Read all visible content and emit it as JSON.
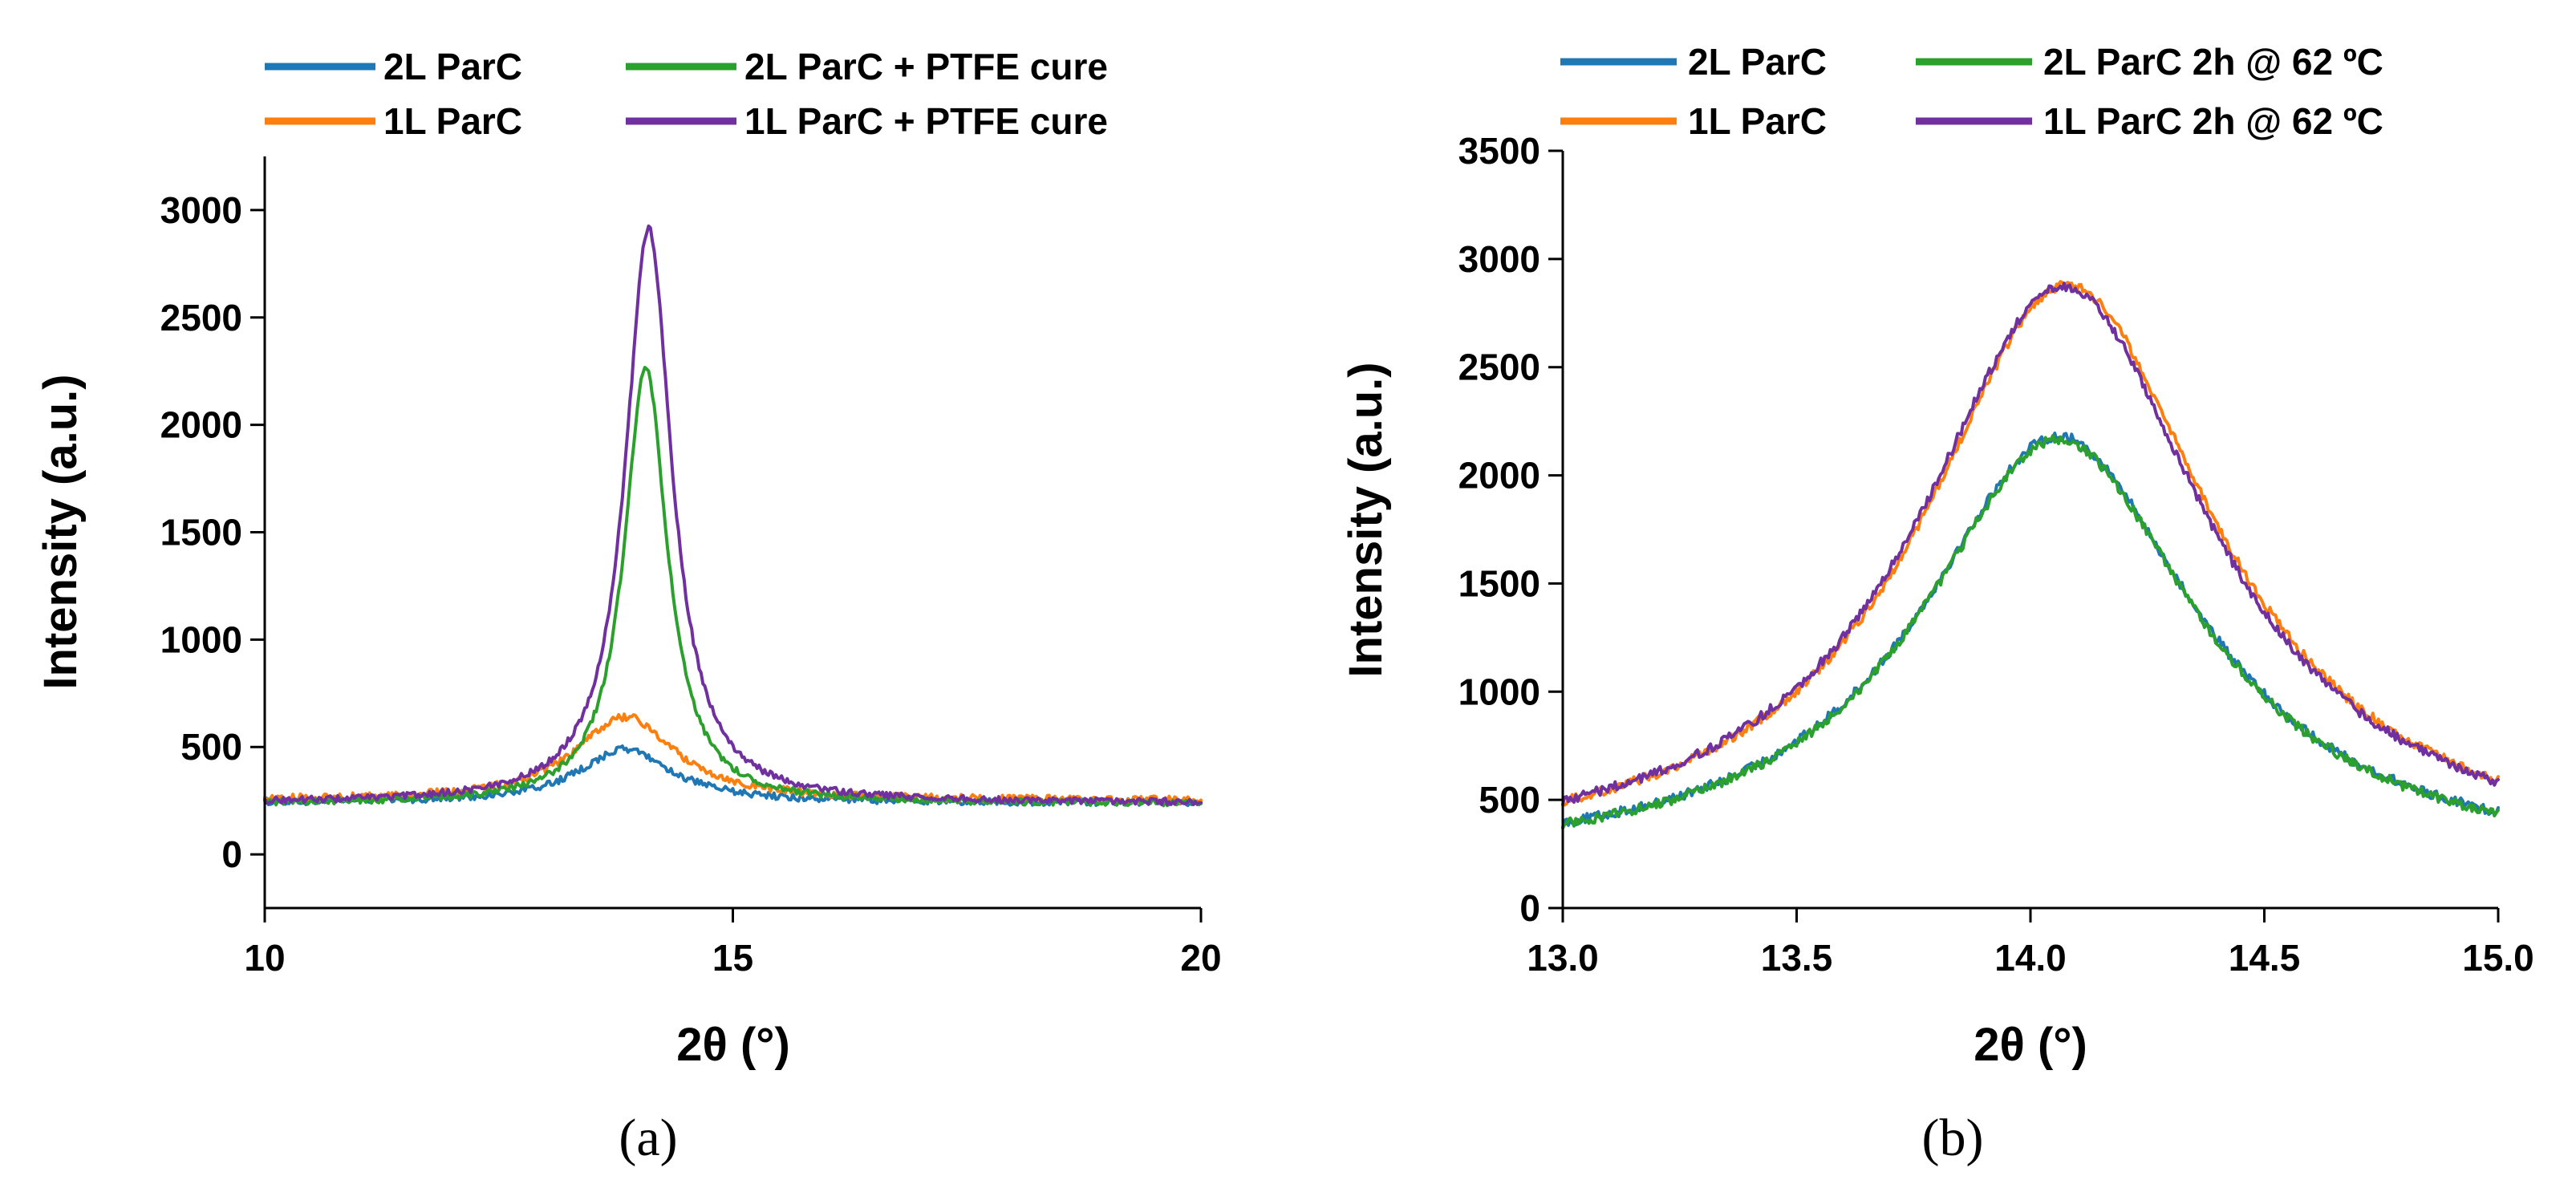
{
  "chart_data": [
    {
      "type": "line",
      "panel_label": "(a)",
      "xlabel": "2θ (°)",
      "ylabel": "Intensity (a.u.)",
      "xlim": [
        10,
        20
      ],
      "ylim": [
        -250,
        3250
      ],
      "xticks": [
        10,
        15,
        20
      ],
      "yticks": [
        0,
        500,
        1000,
        1500,
        2000,
        2500,
        3000
      ],
      "xtick_labels": [
        "10",
        "15",
        "20"
      ],
      "ytick_labels": [
        "0",
        "500",
        "1000",
        "1500",
        "2000",
        "2500",
        "3000"
      ],
      "grid": false,
      "legend_position": "top",
      "series": [
        {
          "name": "2L ParC",
          "color": "#1f77b4",
          "baseline": 240,
          "peak_center": 13.85,
          "peak_height": 250,
          "peak_width": 0.6,
          "noise": 16,
          "x_range": [
            10,
            20
          ],
          "step": 0.02
        },
        {
          "name": "1L ParC",
          "color": "#ff7f0e",
          "baseline": 250,
          "peak_center": 13.85,
          "peak_height": 390,
          "peak_width": 0.65,
          "noise": 18,
          "x_range": [
            10,
            20
          ],
          "step": 0.02
        },
        {
          "name": "2L ParC + PTFE cure",
          "color": "#2ca02c",
          "baseline": 235,
          "peak_center": 14.07,
          "peak_height": 2030,
          "peak_width": 0.28,
          "noise": 15,
          "x_range": [
            10,
            20
          ],
          "step": 0.02
        },
        {
          "name": "1L ParC + PTFE cure",
          "color": "#7030a0",
          "baseline": 238,
          "peak_center": 14.1,
          "peak_height": 2680,
          "peak_width": 0.3,
          "noise": 15,
          "x_range": [
            10,
            20
          ],
          "step": 0.02
        }
      ]
    },
    {
      "type": "line",
      "panel_label": "(b)",
      "xlabel": "2θ (°)",
      "ylabel": "Intensity (a.u.)",
      "xlim": [
        13.0,
        15.0
      ],
      "ylim": [
        0,
        3500
      ],
      "xticks": [
        13.0,
        13.5,
        14.0,
        14.5,
        15.0
      ],
      "yticks": [
        0,
        500,
        1000,
        1500,
        2000,
        2500,
        3000,
        3500
      ],
      "xtick_labels": [
        "13.0",
        "13.5",
        "14.0",
        "14.5",
        "15.0"
      ],
      "ytick_labels": [
        "0",
        "500",
        "1000",
        "1500",
        "2000",
        "2500",
        "3000",
        "3500"
      ],
      "grid": false,
      "legend_position": "top",
      "series": [
        {
          "name": "2L ParC",
          "color": "#1f77b4",
          "baseline": 190,
          "peak_center": 14.06,
          "peak_height": 1990,
          "peak_width": 0.36,
          "noise": 22,
          "x_range": [
            13.0,
            15.0
          ],
          "step": 0.004
        },
        {
          "name": "1L ParC",
          "color": "#ff7f0e",
          "baseline": 200,
          "peak_center": 14.08,
          "peak_height": 2680,
          "peak_width": 0.38,
          "noise": 22,
          "x_range": [
            13.0,
            15.0
          ],
          "step": 0.004
        },
        {
          "name": "2L ParC 2h @ 62 ºC",
          "color": "#2ca02c",
          "baseline": 185,
          "peak_center": 14.06,
          "peak_height": 1980,
          "peak_width": 0.36,
          "noise": 22,
          "x_range": [
            13.0,
            15.0
          ],
          "step": 0.004
        },
        {
          "name": "1L ParC 2h @ 62 ºC",
          "color": "#7030a0",
          "baseline": 200,
          "peak_center": 14.07,
          "peak_height": 2670,
          "peak_width": 0.38,
          "noise": 22,
          "x_range": [
            13.0,
            15.0
          ],
          "step": 0.004
        }
      ]
    }
  ]
}
